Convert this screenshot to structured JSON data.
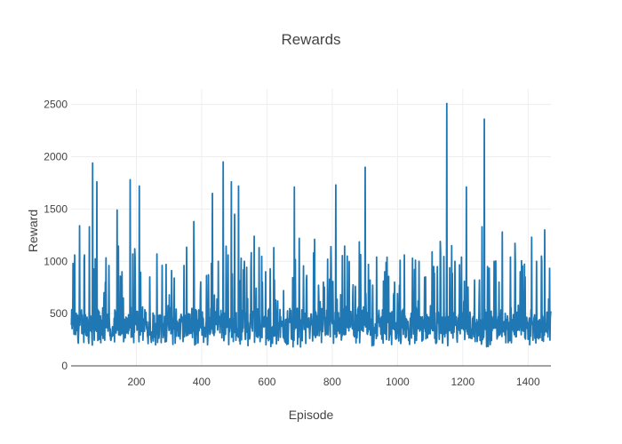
{
  "chart_data": {
    "type": "line",
    "title": "Rewards",
    "xlabel": "Episode",
    "ylabel": "Reward",
    "xlim": [
      0,
      1470
    ],
    "ylim": [
      0,
      2650
    ],
    "x_ticks": [
      200,
      400,
      600,
      800,
      1000,
      1200,
      1400
    ],
    "y_ticks": [
      0,
      500,
      1000,
      1500,
      2000,
      2500
    ],
    "grid": true,
    "series": [
      {
        "color": "#1f77b4",
        "episodes": 1470,
        "baseline": 380,
        "typical_range": [
          120,
          650
        ],
        "min": 70,
        "peaks": [
          {
            "x": 5,
            "y": 980
          },
          {
            "x": 10,
            "y": 1060
          },
          {
            "x": 25,
            "y": 1340
          },
          {
            "x": 40,
            "y": 1060
          },
          {
            "x": 55,
            "y": 1330
          },
          {
            "x": 65,
            "y": 1940
          },
          {
            "x": 78,
            "y": 1760
          },
          {
            "x": 100,
            "y": 700
          },
          {
            "x": 115,
            "y": 960
          },
          {
            "x": 140,
            "y": 1490
          },
          {
            "x": 155,
            "y": 900
          },
          {
            "x": 180,
            "y": 1780
          },
          {
            "x": 188,
            "y": 1070
          },
          {
            "x": 195,
            "y": 1040
          },
          {
            "x": 208,
            "y": 1720
          },
          {
            "x": 240,
            "y": 850
          },
          {
            "x": 262,
            "y": 1070
          },
          {
            "x": 290,
            "y": 970
          },
          {
            "x": 315,
            "y": 840
          },
          {
            "x": 345,
            "y": 960
          },
          {
            "x": 375,
            "y": 1380
          },
          {
            "x": 395,
            "y": 690
          },
          {
            "x": 420,
            "y": 870
          },
          {
            "x": 432,
            "y": 1650
          },
          {
            "x": 450,
            "y": 1000
          },
          {
            "x": 465,
            "y": 1950
          },
          {
            "x": 480,
            "y": 1060
          },
          {
            "x": 490,
            "y": 1760
          },
          {
            "x": 500,
            "y": 1450
          },
          {
            "x": 512,
            "y": 1720
          },
          {
            "x": 530,
            "y": 1000
          },
          {
            "x": 560,
            "y": 1240
          },
          {
            "x": 575,
            "y": 1130
          },
          {
            "x": 595,
            "y": 900
          },
          {
            "x": 620,
            "y": 1130
          },
          {
            "x": 650,
            "y": 720
          },
          {
            "x": 683,
            "y": 1710
          },
          {
            "x": 698,
            "y": 1220
          },
          {
            "x": 720,
            "y": 820
          },
          {
            "x": 745,
            "y": 1210
          },
          {
            "x": 772,
            "y": 800
          },
          {
            "x": 785,
            "y": 1020
          },
          {
            "x": 810,
            "y": 1730
          },
          {
            "x": 825,
            "y": 680
          },
          {
            "x": 845,
            "y": 1050
          },
          {
            "x": 870,
            "y": 760
          },
          {
            "x": 900,
            "y": 1900
          },
          {
            "x": 915,
            "y": 820
          },
          {
            "x": 935,
            "y": 1040
          },
          {
            "x": 960,
            "y": 900
          },
          {
            "x": 990,
            "y": 800
          },
          {
            "x": 1020,
            "y": 1060
          },
          {
            "x": 1045,
            "y": 1030
          },
          {
            "x": 1065,
            "y": 1000
          },
          {
            "x": 1085,
            "y": 850
          },
          {
            "x": 1105,
            "y": 1090
          },
          {
            "x": 1130,
            "y": 1190
          },
          {
            "x": 1150,
            "y": 2510
          },
          {
            "x": 1165,
            "y": 1150
          },
          {
            "x": 1175,
            "y": 1000
          },
          {
            "x": 1195,
            "y": 1040
          },
          {
            "x": 1210,
            "y": 1710
          },
          {
            "x": 1235,
            "y": 820
          },
          {
            "x": 1250,
            "y": 820
          },
          {
            "x": 1258,
            "y": 1330
          },
          {
            "x": 1265,
            "y": 2360
          },
          {
            "x": 1275,
            "y": 950
          },
          {
            "x": 1295,
            "y": 1000
          },
          {
            "x": 1310,
            "y": 800
          },
          {
            "x": 1320,
            "y": 1280
          },
          {
            "x": 1345,
            "y": 1040
          },
          {
            "x": 1360,
            "y": 1000
          },
          {
            "x": 1375,
            "y": 900
          },
          {
            "x": 1390,
            "y": 850
          },
          {
            "x": 1410,
            "y": 1230
          },
          {
            "x": 1425,
            "y": 1000
          },
          {
            "x": 1440,
            "y": 1050
          },
          {
            "x": 1450,
            "y": 1300
          },
          {
            "x": 1462,
            "y": 640
          }
        ]
      }
    ]
  }
}
